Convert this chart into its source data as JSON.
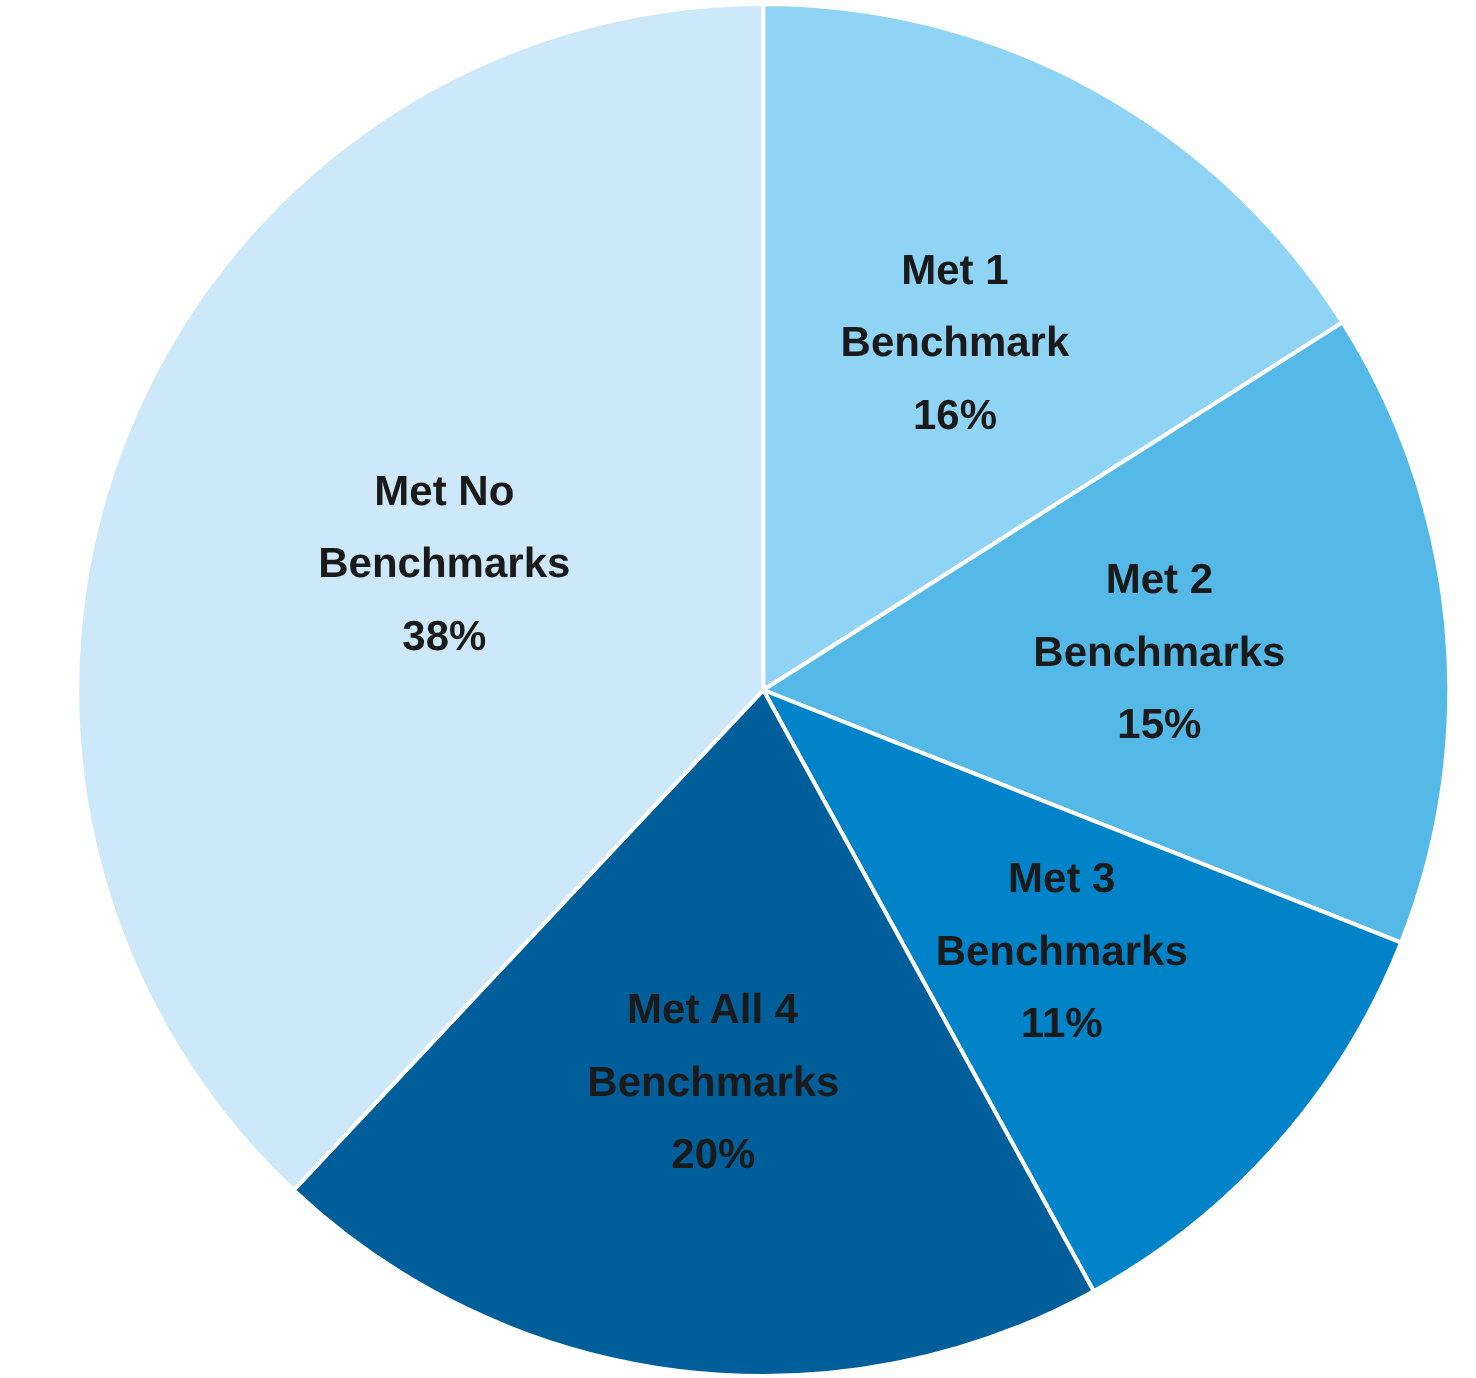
{
  "chart_data": {
    "type": "pie",
    "categories": [
      "Met 1 Benchmark",
      "Met 2 Benchmarks",
      "Met 3 Benchmarks",
      "Met All 4 Benchmarks",
      "Met No Benchmarks"
    ],
    "values": [
      16,
      15,
      11,
      20,
      38
    ],
    "value_labels": [
      "16%",
      "15%",
      "11%",
      "20%",
      "38%"
    ],
    "colors": [
      "#8fd3f5",
      "#55b9e8",
      "#0083c9",
      "#005f9a",
      "#cde9f9"
    ]
  }
}
